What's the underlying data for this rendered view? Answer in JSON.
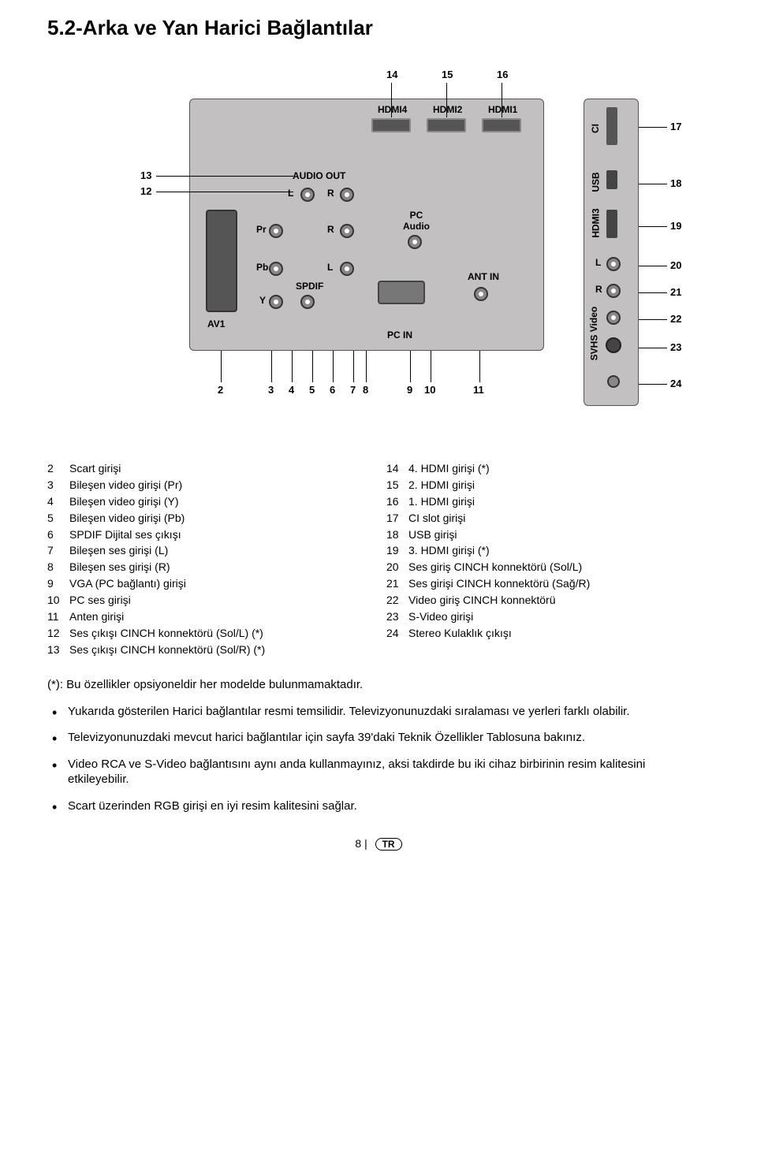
{
  "heading": "5.2-Arka ve Yan Harici Bağlantılar",
  "diagram": {
    "labels": {
      "hdmi4": "HDMI4",
      "hdmi2": "HDMI2",
      "hdmi1": "HDMI1",
      "audio_out": "AUDIO OUT",
      "l1": "L",
      "r1": "R",
      "pr": "Pr",
      "r2": "R",
      "pc_audio": "PC\nAudio",
      "pb": "Pb",
      "l2": "L",
      "spdif": "SPDIF",
      "y": "Y",
      "av1": "AV1",
      "ant_in": "ANT IN",
      "pc_in": "PC IN",
      "ci": "CI",
      "usb": "USB",
      "hdmi3": "HDMI3",
      "side_l": "L",
      "side_r": "R",
      "video": "Video",
      "svhs": "SVHS"
    },
    "callouts_top": [
      "14",
      "15",
      "16"
    ],
    "callouts_left": [
      "13",
      "12"
    ],
    "callouts_bottom": [
      "2",
      "3",
      "4",
      "5",
      "6",
      "7",
      "8",
      "9",
      "10",
      "11"
    ],
    "callouts_right": [
      "17",
      "18",
      "19",
      "20",
      "21",
      "22",
      "23",
      "24"
    ]
  },
  "left_list": [
    {
      "n": "2",
      "t": "Scart girişi"
    },
    {
      "n": "3",
      "t": "Bileşen video girişi (Pr)"
    },
    {
      "n": "4",
      "t": "Bileşen video girişi (Y)"
    },
    {
      "n": "5",
      "t": "Bileşen video girişi (Pb)"
    },
    {
      "n": "6",
      "t": "SPDIF Dijital ses çıkışı"
    },
    {
      "n": "7",
      "t": "Bileşen ses girişi (L)"
    },
    {
      "n": "8",
      "t": "Bileşen ses girişi (R)"
    },
    {
      "n": "9",
      "t": "VGA (PC bağlantı) girişi"
    },
    {
      "n": "10",
      "t": "PC ses girişi"
    },
    {
      "n": "11",
      "t": "Anten girişi"
    },
    {
      "n": "12",
      "t": "Ses çıkışı CINCH konnektörü (Sol/L) (*)"
    },
    {
      "n": "13",
      "t": "Ses çıkışı CINCH konnektörü (Sol/R) (*)"
    }
  ],
  "right_list": [
    {
      "n": "14",
      "t": "4. HDMI girişi (*)"
    },
    {
      "n": "15",
      "t": "2. HDMI girişi"
    },
    {
      "n": "16",
      "t": "1. HDMI girişi"
    },
    {
      "n": "17",
      "t": "CI slot girişi"
    },
    {
      "n": "18",
      "t": "USB girişi"
    },
    {
      "n": "19",
      "t": "3. HDMI girişi (*)"
    },
    {
      "n": "20",
      "t": "Ses giriş CINCH konnektörü (Sol/L)"
    },
    {
      "n": "21",
      "t": "Ses girişi CINCH konnektörü (Sağ/R)"
    },
    {
      "n": "22",
      "t": "Video giriş CINCH konnektörü"
    },
    {
      "n": "23",
      "t": "S-Video girişi"
    },
    {
      "n": "24",
      "t": "Stereo Kulaklık çıkışı"
    }
  ],
  "note_star": "(*): Bu özellikler opsiyoneldir her modelde bulunmamaktadır.",
  "bullets": [
    "Yukarıda gösterilen Harici bağlantılar resmi temsilidir. Televizyonunuzdaki sıralaması ve yerleri farklı olabilir.",
    "Televizyonunuzdaki mevcut harici bağlantılar için sayfa 39'daki Teknik Özellikler Tablosuna bakınız.",
    "Video RCA ve S-Video bağlantısını aynı anda kullanmayınız, aksi takdirde bu iki cihaz birbirinin resim kalitesini etkileyebilir.",
    "Scart üzerinden RGB girişi en iyi resim kalitesini sağlar."
  ],
  "footer_page": "8 |",
  "footer_lang": "TR"
}
